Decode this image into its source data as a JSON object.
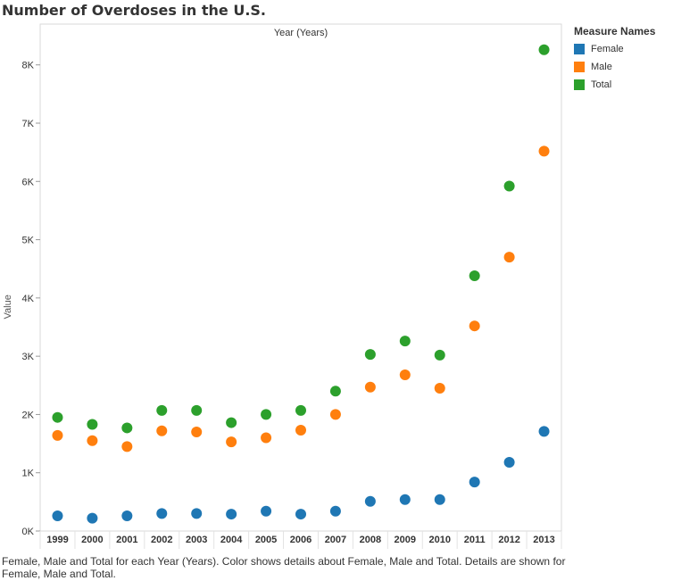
{
  "title": "Number of Overdoses in the U.S.",
  "caption": "Female, Male and Total for each Year (Years).  Color shows details about Female, Male and Total.  Details are shown for Female, Male and Total.",
  "legend": {
    "title": "Measure Names",
    "items": [
      {
        "label": "Female",
        "color": "#1f77b4"
      },
      {
        "label": "Male",
        "color": "#ff7f0e"
      },
      {
        "label": "Total",
        "color": "#2ca02c"
      }
    ]
  },
  "chart_data": {
    "type": "scatter",
    "title": "Number of Overdoses in the U.S.",
    "xlabel": "Year (Years)",
    "ylabel": "Value",
    "categories": [
      "1999",
      "2000",
      "2001",
      "2002",
      "2003",
      "2004",
      "2005",
      "2006",
      "2007",
      "2008",
      "2009",
      "2010",
      "2011",
      "2012",
      "2013"
    ],
    "ylim": [
      0,
      8700
    ],
    "yticks": [
      0,
      1000,
      2000,
      3000,
      4000,
      5000,
      6000,
      7000,
      8000
    ],
    "ytick_labels": [
      "0K",
      "1K",
      "2K",
      "3K",
      "4K",
      "5K",
      "6K",
      "7K",
      "8K"
    ],
    "grid": false,
    "legend_position": "right",
    "series": [
      {
        "name": "Female",
        "color": "#1f77b4",
        "values": [
          260,
          220,
          260,
          300,
          300,
          290,
          340,
          290,
          340,
          510,
          540,
          540,
          840,
          1180,
          1710
        ]
      },
      {
        "name": "Male",
        "color": "#ff7f0e",
        "values": [
          1640,
          1550,
          1450,
          1720,
          1700,
          1530,
          1600,
          1730,
          2000,
          2470,
          2680,
          2450,
          3520,
          4700,
          6520
        ]
      },
      {
        "name": "Total",
        "color": "#2ca02c",
        "values": [
          1950,
          1830,
          1770,
          2070,
          2070,
          1860,
          2000,
          2070,
          2400,
          3030,
          3260,
          3020,
          4380,
          5920,
          8260
        ]
      }
    ]
  }
}
